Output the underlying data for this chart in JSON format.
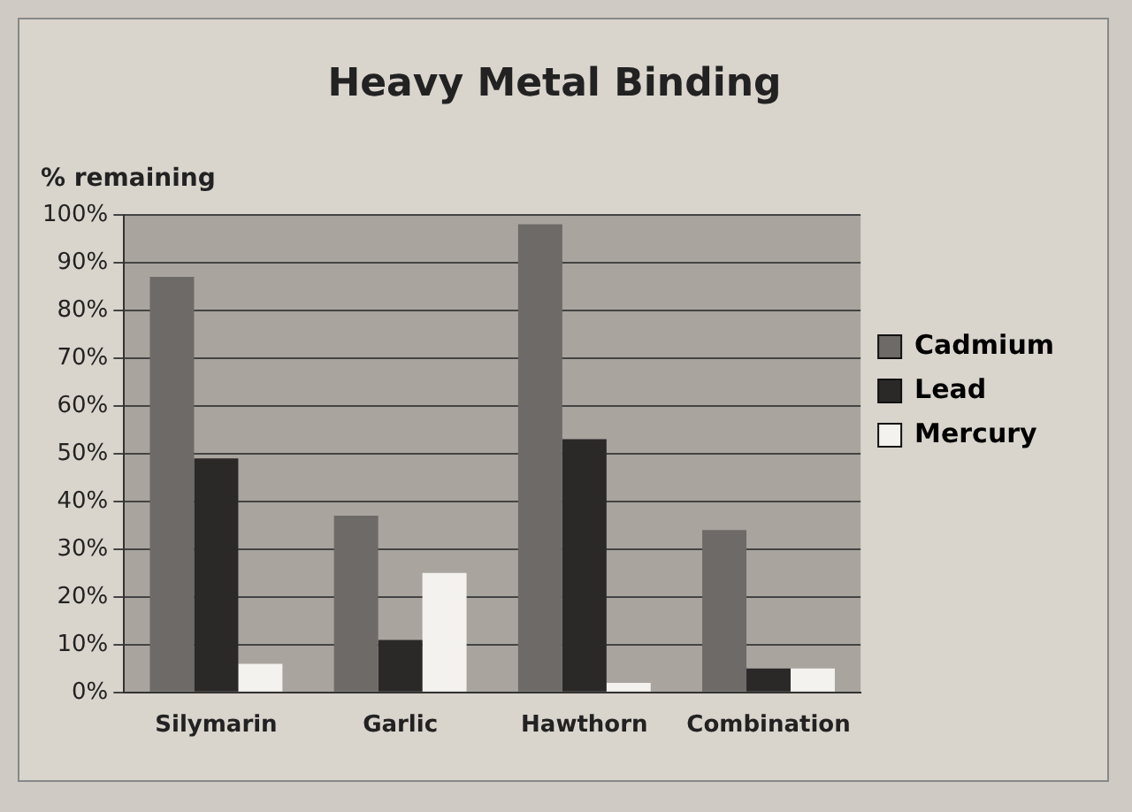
{
  "chart_data": {
    "type": "bar",
    "title": "Heavy Metal Binding",
    "ylabel": "% remaining",
    "categories": [
      "Silymarin",
      "Garlic",
      "Hawthorn",
      "Combination"
    ],
    "series": [
      {
        "name": "Cadmium",
        "color": "#6e6a67",
        "values": [
          87,
          37,
          98,
          34
        ]
      },
      {
        "name": "Lead",
        "color": "#2b2828",
        "values": [
          49,
          11,
          53,
          5
        ]
      },
      {
        "name": "Mercury",
        "color": "#f4f2ee",
        "values": [
          6,
          25,
          2,
          5
        ]
      }
    ],
    "ylim": [
      0,
      100
    ],
    "yticks": [
      {
        "value": 0,
        "label": "0%"
      },
      {
        "value": 10,
        "label": "10%"
      },
      {
        "value": 20,
        "label": "20%"
      },
      {
        "value": 30,
        "label": "30%"
      },
      {
        "value": 40,
        "label": "40%"
      },
      {
        "value": 50,
        "label": "50%"
      },
      {
        "value": 60,
        "label": "60%"
      },
      {
        "value": 70,
        "label": "70%"
      },
      {
        "value": 80,
        "label": "80%"
      },
      {
        "value": 90,
        "label": "90%"
      },
      {
        "value": 100,
        "label": "100%"
      }
    ],
    "grid": "y",
    "legend": "right"
  }
}
